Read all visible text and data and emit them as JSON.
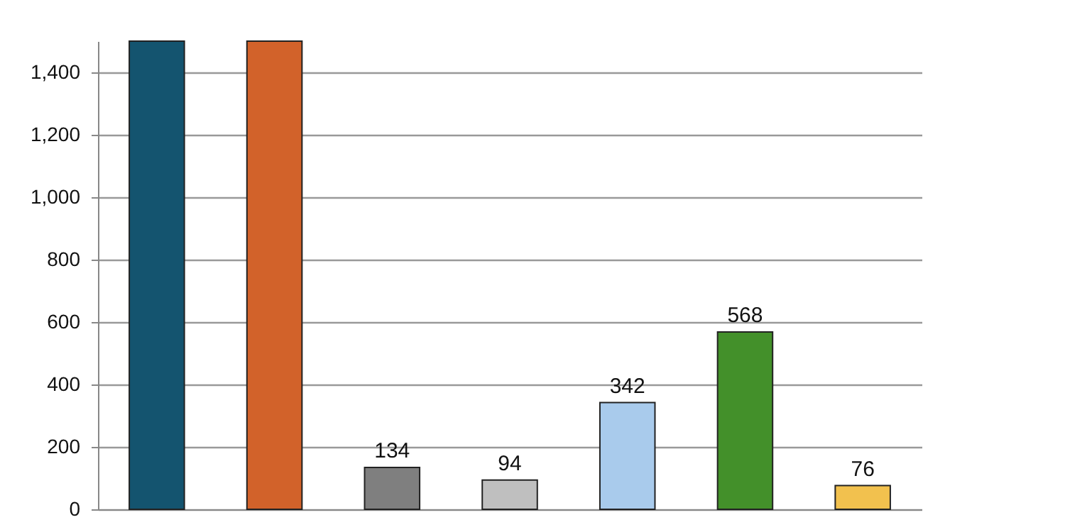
{
  "chart_data": {
    "type": "bar",
    "categories": [
      null,
      null,
      null,
      null,
      null,
      null,
      null
    ],
    "values": [
      1500,
      1500,
      134,
      94,
      342,
      568,
      76
    ],
    "colors": [
      "#14546f",
      "#d2622a",
      "#7f7f7f",
      "#bfbfbf",
      "#a9cbec",
      "#43902a",
      "#f2c14e"
    ],
    "value_labels": [
      null,
      null,
      "134",
      "94",
      "342",
      "568",
      "76"
    ],
    "ylim": [
      0,
      1500
    ],
    "yticks": [
      0,
      200,
      400,
      600,
      800,
      {
        "value": 1000,
        "label": "1,000"
      },
      {
        "value": 1200,
        "label": "1,200"
      },
      {
        "value": 1400,
        "label": "1,400"
      }
    ],
    "grid": "y",
    "tick_labels": "y"
  }
}
